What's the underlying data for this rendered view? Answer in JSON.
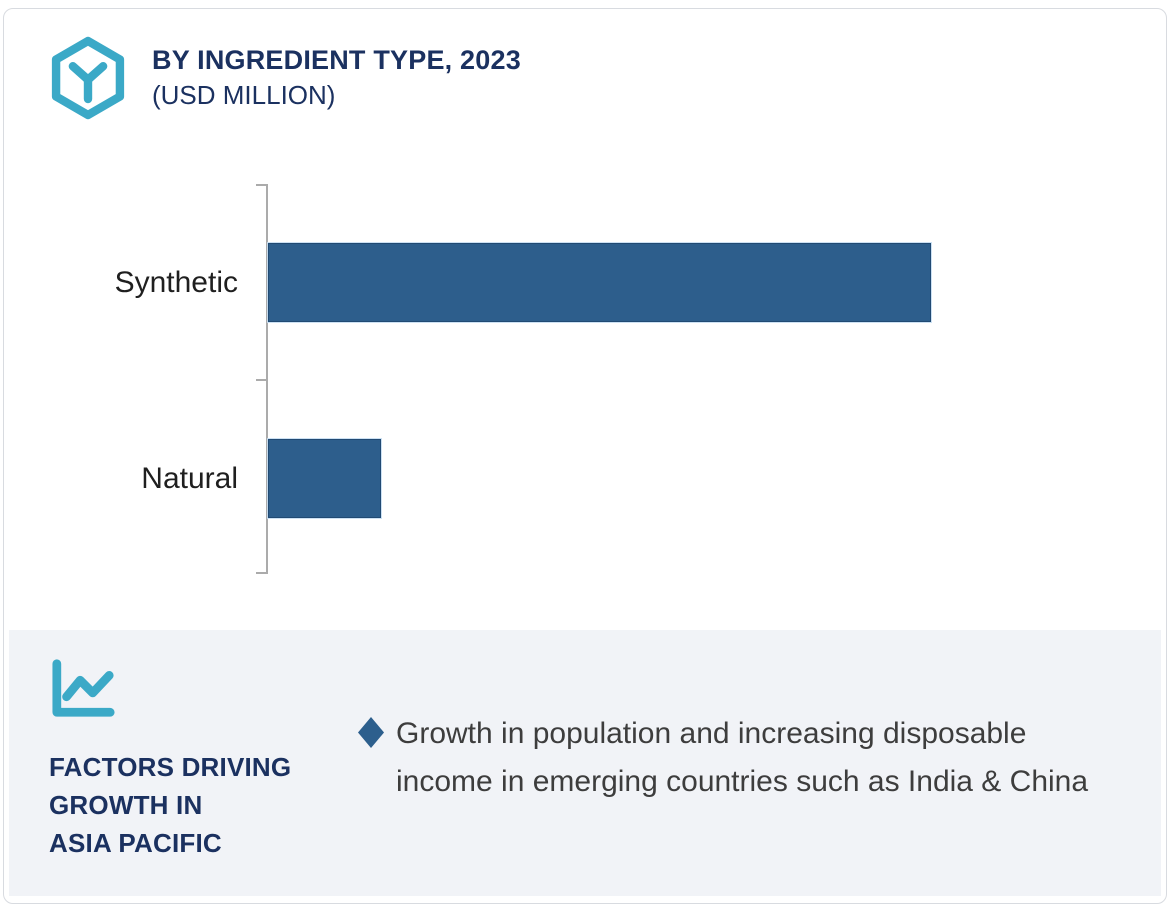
{
  "header": {
    "title_line1": "BY INGREDIENT TYPE, 2023",
    "title_line2": "(USD MILLION)",
    "icon": "hexagon-cube-icon"
  },
  "chart_data": {
    "type": "bar",
    "orientation": "horizontal",
    "title": "BY INGREDIENT TYPE, 2023 (USD MILLION)",
    "categories": [
      "Synthetic",
      "Natural"
    ],
    "values": [
      76,
      13
    ],
    "value_units": "percent of plot width (no numeric axis labels shown in image)",
    "xlabel": "",
    "ylabel": "",
    "xlim": [
      0,
      100
    ],
    "grid": false,
    "legend": false,
    "data_labels": false,
    "bar_color": "#2D5E8C",
    "axis_color": "#ABABAB"
  },
  "factors_panel": {
    "icon": "line-chart-icon",
    "heading_lines": [
      "FACTORS DRIVING",
      "GROWTH IN",
      "ASIA PACIFIC"
    ],
    "bullet_marker": "diamond",
    "bullets": [
      "Growth in population and increasing disposable income in emerging countries such as India & China"
    ],
    "background_color": "#F1F3F7",
    "heading_color": "#1B3160",
    "bullet_marker_color": "#2D5F8D",
    "text_color": "#3D3D3D"
  },
  "colors": {
    "accent_teal": "#3BA9C7",
    "navy": "#1B3160",
    "bar_blue": "#2D5E8C",
    "card_border": "#D8DBE0"
  }
}
